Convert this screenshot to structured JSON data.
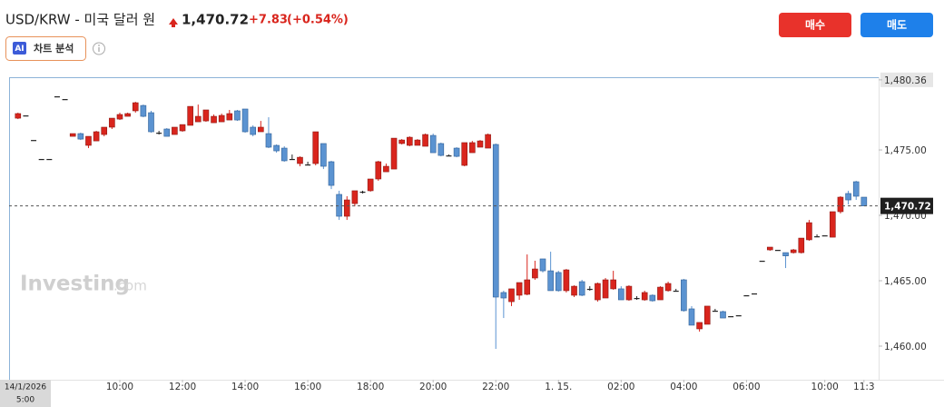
{
  "header": {
    "title": "USD/KRW - 미국 달러 원",
    "price": "1,470.72",
    "change": "+7.83",
    "change_pct": "(+0.54%)",
    "ai_badge": "AI",
    "ai_label": "차트 분석",
    "buy": "매수",
    "sell": "매도"
  },
  "watermark": {
    "brand": "Investing",
    "suffix": ".com"
  },
  "chart_data": {
    "type": "candlestick",
    "start_date": "14/1/2026",
    "start_time": "5:00",
    "up_color": "#d9251d",
    "down_color": "#5b93d1",
    "flat_color": "#222222",
    "ylim": [
      1457.43,
      1480.56
    ],
    "yticks": [
      {
        "value": 1460,
        "label": "1,460.00"
      },
      {
        "value": 1465,
        "label": "1,465.00"
      },
      {
        "value": 1470,
        "label": "1,470.00"
      },
      {
        "value": 1475,
        "label": "1,475.00"
      },
      {
        "value": 1480.36,
        "label": "1,480.36"
      }
    ],
    "last_price": {
      "value": 1470.72,
      "label": "1,470.72"
    },
    "categories": [
      null,
      null,
      null,
      null,
      null,
      null,
      null,
      null,
      null,
      null,
      null,
      null,
      null,
      "10:00",
      null,
      null,
      null,
      null,
      null,
      null,
      null,
      "12:00",
      null,
      null,
      null,
      null,
      null,
      null,
      null,
      "14:00",
      null,
      null,
      null,
      null,
      null,
      null,
      null,
      "16:00",
      null,
      null,
      null,
      null,
      null,
      null,
      null,
      "18:00",
      null,
      null,
      null,
      null,
      null,
      null,
      null,
      "20:00",
      null,
      null,
      null,
      null,
      null,
      null,
      null,
      "22:00",
      null,
      null,
      null,
      null,
      null,
      null,
      null,
      "1. 15.",
      null,
      null,
      null,
      null,
      null,
      null,
      null,
      "02:00",
      null,
      null,
      null,
      null,
      null,
      null,
      null,
      "04:00",
      null,
      null,
      null,
      null,
      null,
      null,
      null,
      "06:00",
      null,
      null,
      null,
      null,
      null,
      null,
      null,
      null,
      null,
      "10:00",
      null,
      null,
      null,
      null,
      "11:3"
    ],
    "open": [
      1477.43,
      1477.64,
      1475.76,
      1474.31,
      1474.31,
      1479.1,
      1478.89,
      1476.04,
      1476.25,
      1475.35,
      1475.69,
      1476.18,
      1476.74,
      1477.36,
      1477.57,
      1477.99,
      1478.4,
      1477.85,
      1476.32,
      1476.6,
      1476.18,
      1476.46,
      1476.88,
      1477.15,
      1477.22,
      1477.08,
      1477.15,
      1477.29,
      1477.99,
      1478.13,
      1476.74,
      1476.39,
      1476.25,
      1475.35,
      1475.14,
      1474.31,
      1473.96,
      1473.89,
      1473.96,
      1475.49,
      1474.1,
      1471.6,
      1469.93,
      1470.9,
      1471.81,
      1471.88,
      1472.78,
      1473.33,
      1473.54,
      1475.49,
      1475.35,
      1475.35,
      1475.28,
      1476.11,
      1475.49,
      1474.58,
      1475.14,
      1473.82,
      1474.79,
      1475.21,
      1475.14,
      1475.42,
      1464.1,
      1463.4,
      1463.89,
      1463.96,
      1465.21,
      1466.67,
      1465.76,
      1465.63,
      1464.24,
      1463.89,
      1464.93,
      1464.38,
      1463.54,
      1463.68,
      1464.38,
      1464.38,
      1463.54,
      1463.68,
      1463.54,
      1463.89,
      1463.54,
      1464.24,
      1464.24,
      1465.07,
      1462.85,
      1461.32,
      1461.67,
      1462.71,
      1462.64,
      1462.29,
      1462.36,
      1463.89,
      1464.03,
      1466.53,
      1467.36,
      1467.36,
      1467.15,
      1467.15,
      1467.15,
      1468.13,
      1468.4,
      1468.47,
      1468.33,
      1470.28,
      1471.67,
      1472.57,
      1471.39
    ],
    "high": [
      1477.85,
      1477.64,
      1475.76,
      1474.31,
      1474.31,
      1479.1,
      1478.89,
      1476.25,
      1476.32,
      1476.04,
      1476.46,
      1476.74,
      1477.43,
      1477.85,
      1477.85,
      1478.68,
      1478.47,
      1477.99,
      1476.46,
      1476.67,
      1476.74,
      1476.94,
      1478.33,
      1478.47,
      1478.06,
      1477.71,
      1477.78,
      1478.06,
      1478.06,
      1478.13,
      1476.88,
      1477.22,
      1477.5,
      1475.42,
      1475.28,
      1474.65,
      1474.51,
      1474.1,
      1476.39,
      1475.49,
      1474.17,
      1471.88,
      1471.46,
      1471.88,
      1471.88,
      1472.78,
      1474.17,
      1473.96,
      1475.9,
      1475.83,
      1476.04,
      1475.83,
      1476.25,
      1476.25,
      1475.56,
      1474.65,
      1475.21,
      1475.56,
      1475.69,
      1475.76,
      1476.25,
      1475.49,
      1464.24,
      1464.38,
      1464.86,
      1467.01,
      1466.53,
      1466.67,
      1467.22,
      1465.76,
      1465.9,
      1464.65,
      1465.07,
      1464.58,
      1464.86,
      1465.21,
      1465.76,
      1464.58,
      1464.65,
      1463.82,
      1464.24,
      1463.96,
      1464.58,
      1464.93,
      1464.38,
      1465.14,
      1463.06,
      1461.81,
      1463.06,
      1462.85,
      1462.71,
      1462.29,
      1462.36,
      1463.89,
      1464.03,
      1466.53,
      1467.57,
      1467.36,
      1467.15,
      1467.43,
      1468.26,
      1469.65,
      1468.54,
      1468.47,
      1470.28,
      1471.46,
      1471.88,
      1472.64,
      1471.39
    ],
    "low": [
      1477.36,
      1477.64,
      1475.76,
      1474.31,
      1474.31,
      1479.1,
      1478.89,
      1476.04,
      1475.76,
      1475.14,
      1475.69,
      1476.04,
      1476.6,
      1477.29,
      1477.57,
      1477.85,
      1477.5,
      1476.32,
      1476.18,
      1476.04,
      1476.18,
      1476.39,
      1476.88,
      1477.15,
      1477.15,
      1477.08,
      1477.15,
      1477.29,
      1477.22,
      1476.32,
      1476.04,
      1476.39,
      1475.14,
      1474.79,
      1474.1,
      1474.31,
      1473.75,
      1473.89,
      1473.82,
      1473.54,
      1472.01,
      1469.65,
      1469.65,
      1470.69,
      1471.67,
      1471.81,
      1472.64,
      1473.33,
      1473.54,
      1475.42,
      1475.28,
      1475.35,
      1475.28,
      1474.79,
      1474.51,
      1474.58,
      1474.44,
      1473.75,
      1474.79,
      1475.21,
      1475.14,
      1459.79,
      1462.15,
      1463.06,
      1463.54,
      1463.89,
      1465.07,
      1465.63,
      1464.24,
      1464.17,
      1464.1,
      1463.75,
      1463.82,
      1464.24,
      1463.4,
      1463.68,
      1464.31,
      1463.54,
      1463.47,
      1463.54,
      1463.47,
      1463.4,
      1463.54,
      1464.17,
      1464.17,
      1462.64,
      1461.6,
      1461.11,
      1461.67,
      1462.64,
      1462.15,
      1462.29,
      1462.36,
      1463.89,
      1464.03,
      1466.53,
      1467.29,
      1467.36,
      1465.97,
      1467.08,
      1467.08,
      1468.06,
      1468.33,
      1468.47,
      1468.33,
      1470.14,
      1470.83,
      1471.18,
      1470.72
    ],
    "close": [
      1477.78,
      1477.64,
      1475.76,
      1474.31,
      1474.31,
      1479.1,
      1478.89,
      1476.25,
      1475.83,
      1476.04,
      1476.39,
      1476.74,
      1477.43,
      1477.71,
      1477.78,
      1478.61,
      1477.57,
      1476.39,
      1476.32,
      1476.04,
      1476.74,
      1476.94,
      1478.33,
      1477.57,
      1478.06,
      1477.57,
      1477.64,
      1477.78,
      1477.29,
      1476.39,
      1476.18,
      1476.74,
      1475.21,
      1474.93,
      1474.17,
      1474.31,
      1474.44,
      1473.89,
      1476.39,
      1473.75,
      1472.29,
      1469.93,
      1471.18,
      1471.88,
      1471.81,
      1472.78,
      1474.1,
      1473.75,
      1475.9,
      1475.76,
      1475.97,
      1475.76,
      1476.18,
      1474.79,
      1474.58,
      1474.58,
      1474.51,
      1475.56,
      1475.56,
      1475.69,
      1476.18,
      1463.75,
      1463.68,
      1464.38,
      1464.86,
      1465.07,
      1465.9,
      1465.76,
      1464.24,
      1464.24,
      1465.83,
      1464.58,
      1463.89,
      1464.38,
      1464.79,
      1465.07,
      1465.07,
      1463.54,
      1464.58,
      1463.68,
      1464.1,
      1463.47,
      1464.51,
      1464.79,
      1464.24,
      1462.71,
      1461.6,
      1461.81,
      1463.06,
      1462.71,
      1462.15,
      1462.29,
      1462.36,
      1463.89,
      1464.03,
      1466.53,
      1467.57,
      1467.36,
      1466.9,
      1467.36,
      1468.26,
      1469.44,
      1468.4,
      1468.47,
      1470.28,
      1471.39,
      1471.18,
      1471.46,
      1470.72
    ]
  }
}
